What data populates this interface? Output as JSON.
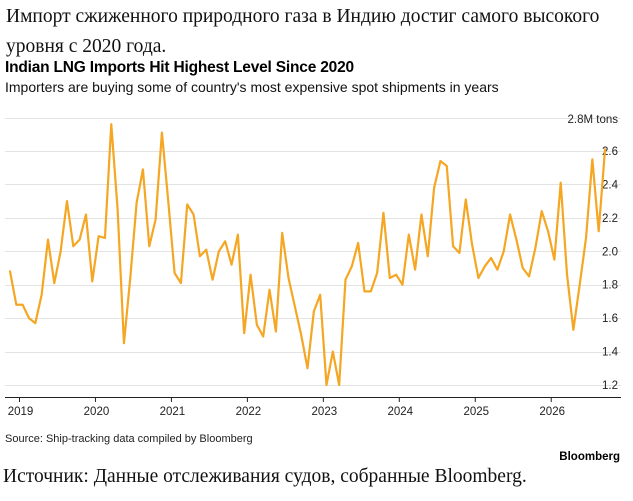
{
  "ru_title": "Импорт сжиженного природного газа в Индию достиг самого высокого уровня с 2020 года.",
  "en_title": "Indian LNG Imports Hit Highest Level Since 2020",
  "en_subtitle": "Importers are buying some of country's most expensive spot shipments in years",
  "source": "Source: Ship-tracking data compiled by Bloomberg",
  "brand": "Bloomberg",
  "ru_source": "Источник: Данные отслеживания судов, собранные Bloomberg.",
  "chart_data": {
    "type": "line",
    "title": "Indian LNG Imports Hit Highest Level Since 2020",
    "subtitle": "Importers are buying some of country's most expensive spot shipments in years",
    "unit_label": "2.8M tons",
    "ylim": [
      1.1,
      2.8
    ],
    "yticks": [
      "1.2",
      "1.4",
      "1.6",
      "1.8",
      "2.0",
      "2.2",
      "2.4",
      "2.6"
    ],
    "xticks": [
      "2019",
      "2020",
      "2021",
      "2022",
      "2023",
      "2024",
      "2025",
      "2026"
    ],
    "x_start": "2018-11",
    "color": "#f5a623",
    "grid": true,
    "legend": "none",
    "series": [
      {
        "values": [
          1.88,
          1.68,
          1.68,
          1.6,
          1.57,
          1.74,
          2.07,
          1.81,
          2.0,
          2.3,
          2.03,
          2.07,
          2.22,
          1.82,
          2.09,
          2.08,
          2.76,
          2.25,
          1.45,
          1.84,
          2.29,
          2.49,
          2.03,
          2.19,
          2.71,
          2.3,
          1.87,
          1.81,
          2.28,
          2.22,
          1.97,
          2.01,
          1.83,
          2.0,
          2.06,
          1.92,
          2.1,
          1.51,
          1.86,
          1.56,
          1.49,
          1.77,
          1.52,
          2.11,
          1.84,
          1.67,
          1.5,
          1.3,
          1.64,
          1.74,
          1.2,
          1.4,
          1.2,
          1.83,
          1.91,
          2.05,
          1.76,
          1.76,
          1.87,
          2.23,
          1.84,
          1.86,
          1.8,
          2.1,
          1.89,
          2.22,
          1.97,
          2.38,
          2.54,
          2.51,
          2.03,
          1.99,
          2.31,
          2.04,
          1.84,
          1.91,
          1.96,
          1.89,
          2.0,
          2.22,
          2.07,
          1.9,
          1.85,
          2.02,
          2.24,
          2.12,
          1.95,
          2.41,
          1.86,
          1.53,
          1.8,
          2.08,
          2.55,
          2.12,
          2.61
        ]
      }
    ]
  }
}
